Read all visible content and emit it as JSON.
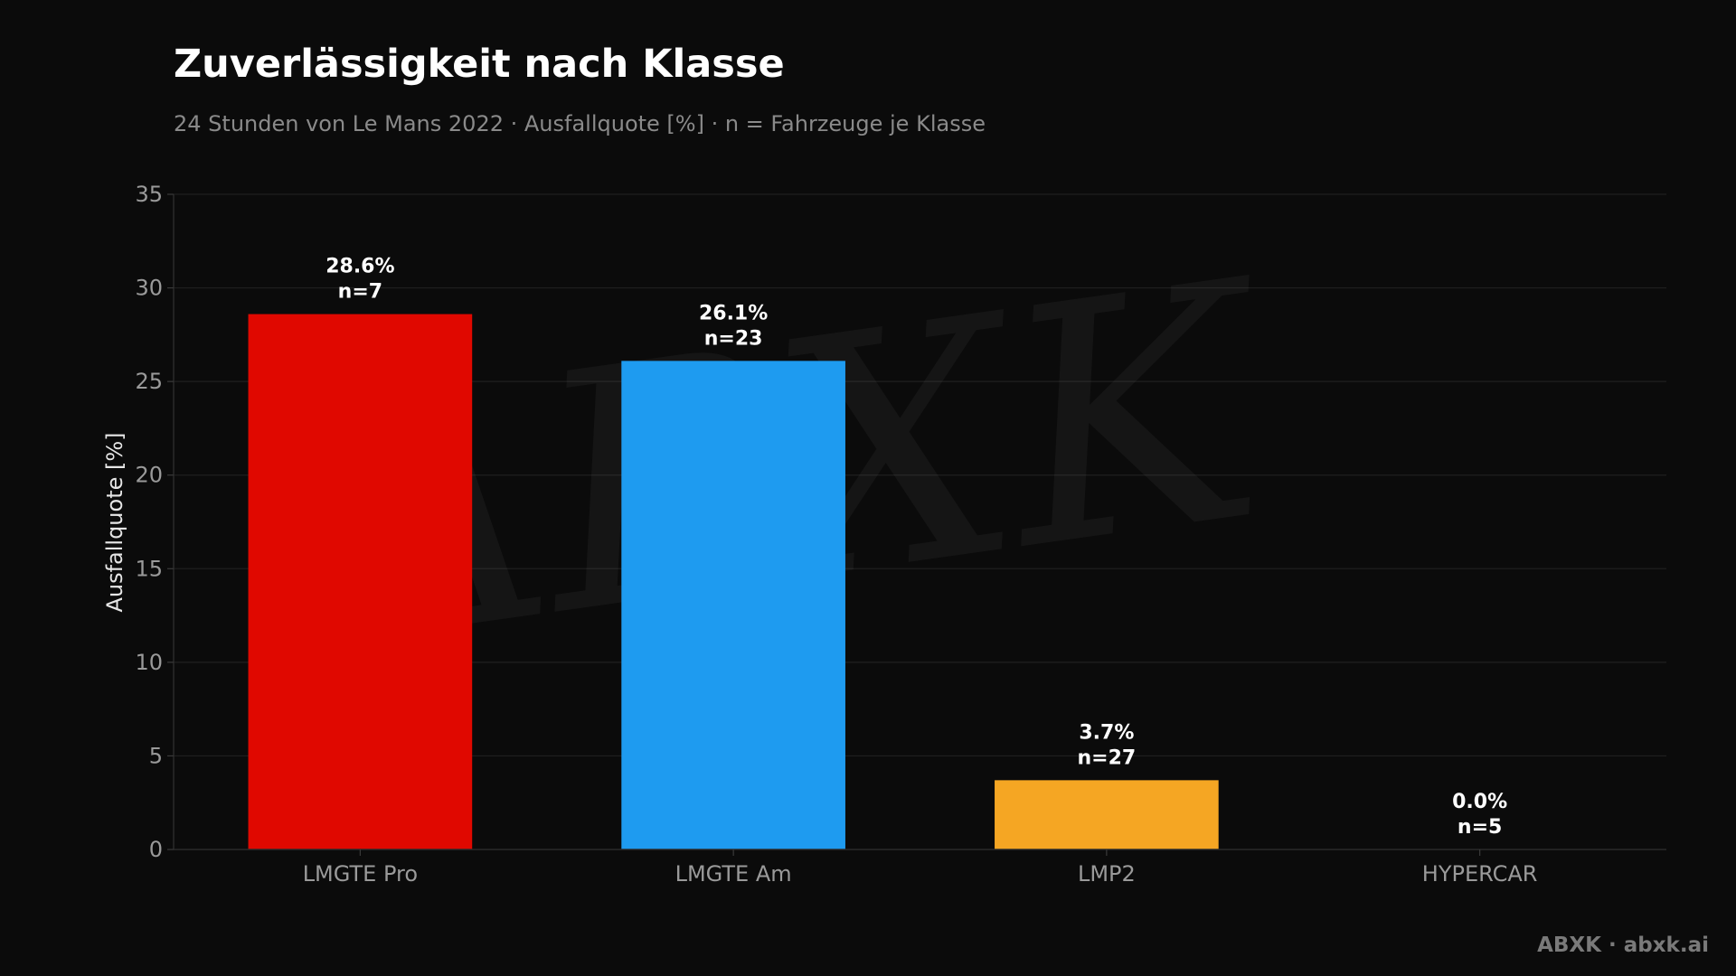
{
  "chart_data": {
    "type": "bar",
    "title": "Zuverlässigkeit nach Klasse",
    "subtitle": "24 Stunden von Le Mans 2022 · Ausfallquote [%] · n = Fahrzeuge je Klasse",
    "xlabel": "",
    "ylabel": "Ausfallquote [%]",
    "ylim": [
      0,
      35
    ],
    "yticks": [
      0,
      5,
      10,
      15,
      20,
      25,
      30,
      35
    ],
    "grid": true,
    "categories": [
      "LMGTE Pro",
      "LMGTE Am",
      "LMP2",
      "HYPERCAR"
    ],
    "values": [
      28.6,
      26.1,
      3.7,
      0.0
    ],
    "value_labels": [
      "28.6%",
      "26.1%",
      "3.7%",
      "0.0%"
    ],
    "n_labels": [
      "n=7",
      "n=23",
      "n=27",
      "n=5"
    ],
    "colors": [
      "#e00800",
      "#1e9bf0",
      "#f5a623",
      "#808080"
    ]
  },
  "watermark": {
    "text": "ABXK"
  },
  "footer": {
    "text": "ABXK · abxk.ai"
  }
}
